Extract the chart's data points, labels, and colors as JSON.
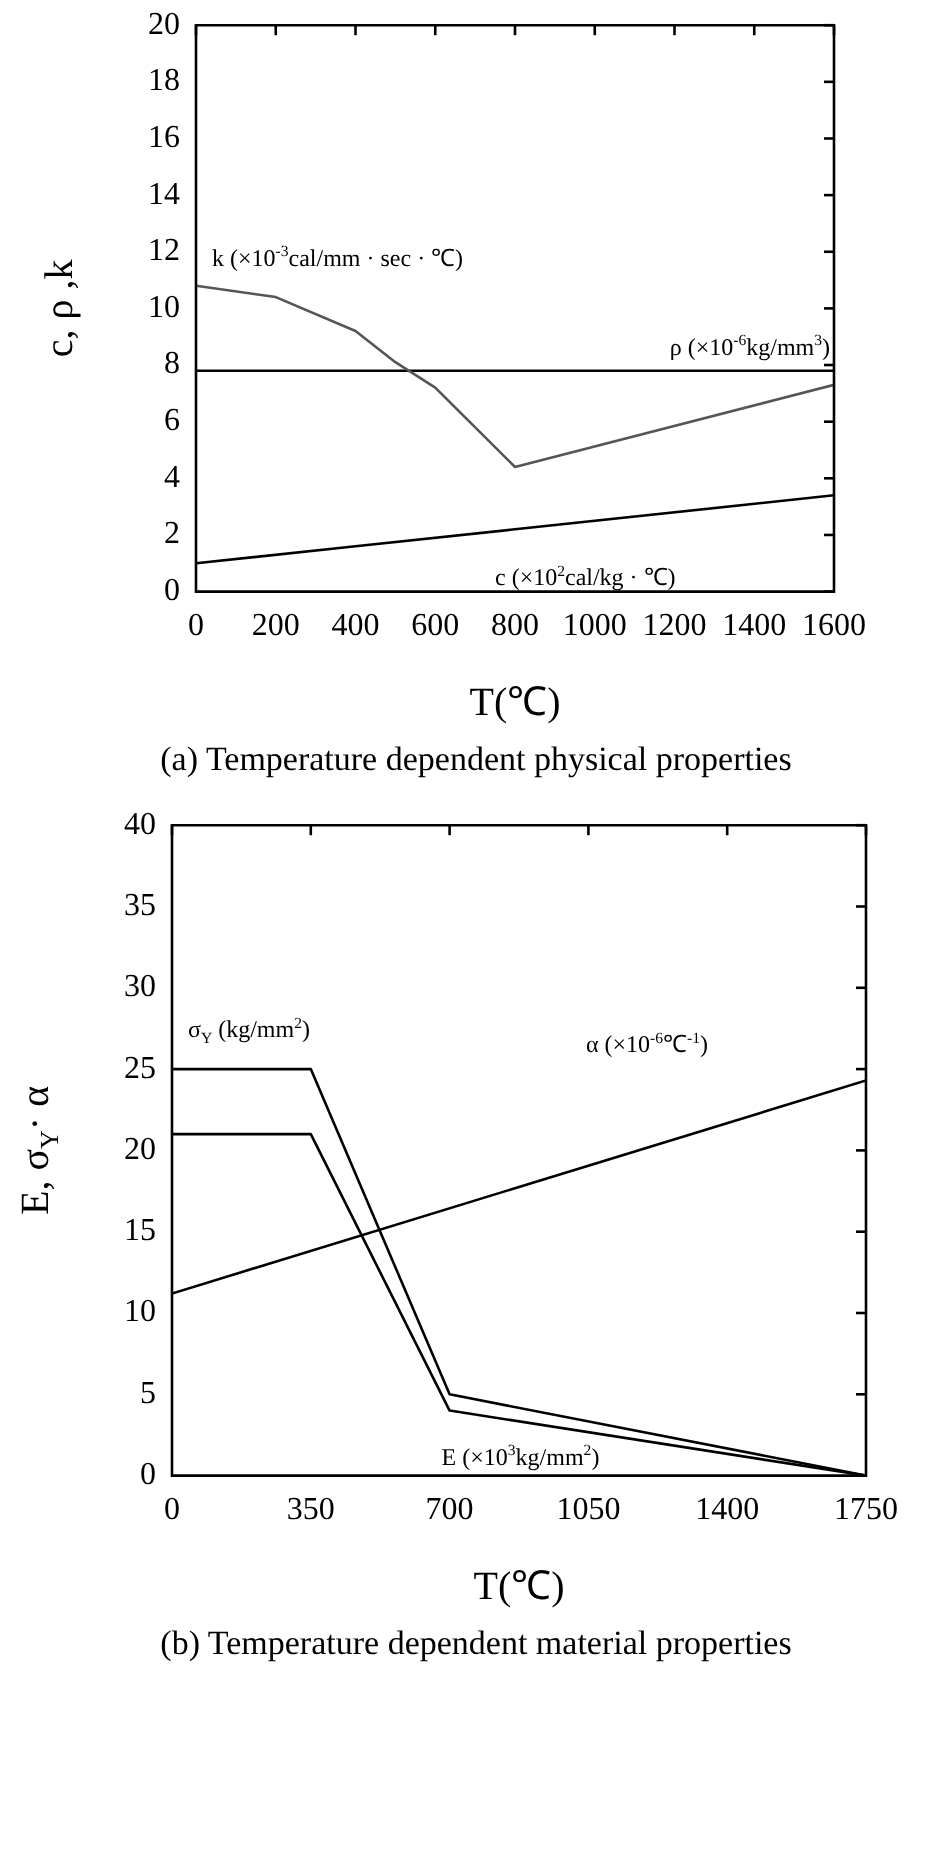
{
  "chart_data": [
    {
      "type": "line",
      "title": "(a) Temperature dependent physical properties",
      "xlabel": "T(℃)",
      "ylabel": "c, ρ ,k",
      "xlim": [
        0,
        1600
      ],
      "ylim": [
        0,
        20
      ],
      "xticks": [
        0,
        200,
        400,
        600,
        800,
        1000,
        1200,
        1400,
        1600
      ],
      "yticks": [
        0,
        2,
        4,
        6,
        8,
        10,
        12,
        14,
        16,
        18,
        20
      ],
      "marker": "none",
      "series": [
        {
          "name": "k (×10$^{-3}$cal/mm · sec · ℃)",
          "color": "#555555",
          "x": [
            0,
            200,
            400,
            500,
            600,
            800,
            1600
          ],
          "values": [
            10.8,
            10.4,
            9.2,
            8.1,
            7.2,
            4.4,
            7.3
          ]
        },
        {
          "name": "ρ (×10$^{-6}$kg/mm$^{3}$)",
          "color": "#000000",
          "x": [
            0,
            1600
          ],
          "values": [
            7.8,
            7.8
          ]
        },
        {
          "name": "c (×10$^{2}$cal/kg · ℃)",
          "color": "#000000",
          "x": [
            0,
            400,
            800,
            1600
          ],
          "values": [
            1.0,
            1.6,
            2.2,
            3.4
          ]
        }
      ]
    },
    {
      "type": "line",
      "title": "(b) Temperature dependent material properties",
      "xlabel": "T(℃)",
      "ylabel": "E, σ$_{Y}$· α",
      "xlim": [
        0,
        1750
      ],
      "ylim": [
        0,
        40
      ],
      "xticks": [
        0,
        350,
        700,
        1050,
        1400,
        1750
      ],
      "yticks": [
        0,
        5,
        10,
        15,
        20,
        25,
        30,
        35,
        40
      ],
      "marker": "none",
      "series": [
        {
          "name": "σ$_{Y}$ (kg/mm$^{2}$)",
          "color": "#000000",
          "x": [
            0,
            350,
            700,
            1750
          ],
          "values": [
            25,
            25,
            5,
            0
          ]
        },
        {
          "name": "E (×10$^{3}$kg/mm$^{2}$)",
          "color": "#000000",
          "x": [
            0,
            350,
            700,
            1750
          ],
          "values": [
            21,
            21,
            4,
            0
          ]
        },
        {
          "name": "α (×10$^{-6}$℃$^{-1}$)",
          "color": "#000000",
          "x": [
            0,
            1750
          ],
          "values": [
            11.2,
            24.3
          ]
        }
      ]
    }
  ]
}
